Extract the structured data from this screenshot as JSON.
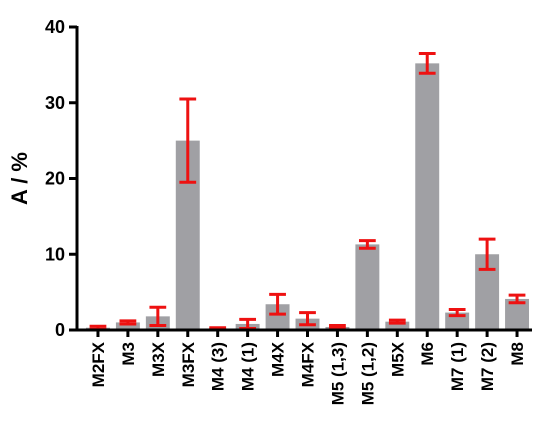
{
  "chart_data": {
    "type": "bar",
    "title": "",
    "xlabel": "",
    "ylabel": "A / %",
    "ylim": [
      0,
      40
    ],
    "yticks": [
      0,
      10,
      20,
      30,
      40
    ],
    "grid": false,
    "categories": [
      "M2FX",
      "M3",
      "M3X",
      "M3FX",
      "M4 (3)",
      "M4 (1)",
      "M4X",
      "M4FX",
      "M5 (1,3)",
      "M5 (1,2)",
      "M5X",
      "M6",
      "M7 (1)",
      "M7 (2)",
      "M8"
    ],
    "values": [
      0.3,
      1.0,
      1.8,
      25.0,
      0.2,
      0.8,
      3.4,
      1.5,
      0.4,
      11.3,
      1.1,
      35.2,
      2.3,
      10.0,
      4.1
    ],
    "errors": [
      0.2,
      0.2,
      1.2,
      5.5,
      0.1,
      0.6,
      1.3,
      0.8,
      0.2,
      0.5,
      0.2,
      1.3,
      0.4,
      2.0,
      0.5
    ],
    "bar_color": "#a0a0a4",
    "error_color": "#ee1111"
  }
}
